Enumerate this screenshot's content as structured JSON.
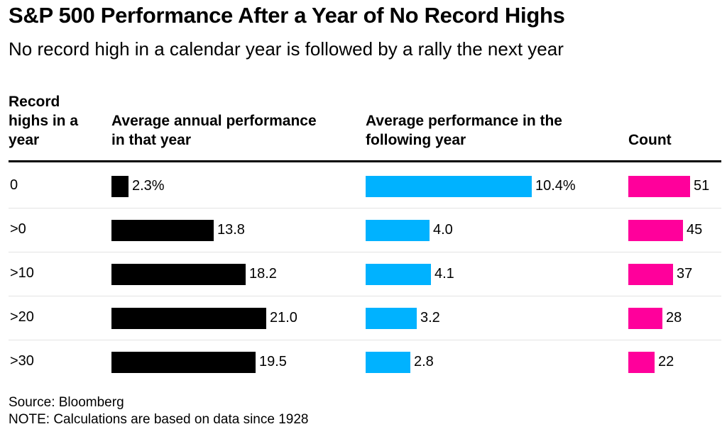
{
  "title": "S&P 500 Performance After a Year of No Record Highs",
  "subtitle": "No record high in a calendar year is followed by a rally the next year",
  "columns": {
    "record_highs": [
      "Record",
      "highs in a",
      "year"
    ],
    "avg_that_year": [
      "Average annual performance",
      "in that year"
    ],
    "avg_following_year": [
      "Average performance in the",
      "following year"
    ],
    "count": [
      "Count"
    ]
  },
  "colors": {
    "that_year": "#000000",
    "following_year": "#00b2ff",
    "count": "#ff009b"
  },
  "chart_data": {
    "type": "bar",
    "layout": "table of horizontal bars",
    "categories": [
      "0",
      ">0",
      ">10",
      ">20",
      ">30"
    ],
    "series": [
      {
        "name": "Average annual performance in that year",
        "values": [
          2.3,
          13.8,
          18.2,
          21.0,
          19.5
        ],
        "labels": [
          "2.3%",
          "13.8",
          "18.2",
          "21.0",
          "19.5"
        ]
      },
      {
        "name": "Average performance in the following year",
        "values": [
          10.4,
          4.0,
          4.1,
          3.2,
          2.8
        ],
        "labels": [
          "10.4%",
          "4.0",
          "4.1",
          "3.2",
          "2.8"
        ]
      },
      {
        "name": "Count",
        "values": [
          51,
          45,
          37,
          28,
          22
        ],
        "labels": [
          "51",
          "45",
          "37",
          "28",
          "22"
        ]
      }
    ]
  },
  "footer": {
    "source": "Source: Bloomberg",
    "note": "NOTE: Calculations are based on data since 1928"
  }
}
